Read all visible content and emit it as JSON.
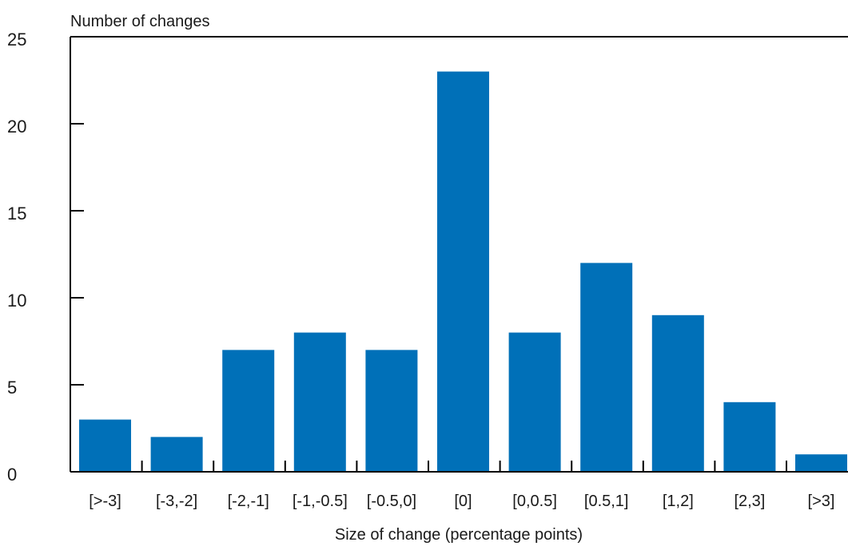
{
  "chart_data": {
    "type": "bar",
    "title": "",
    "ylabel": "Number of changes",
    "xlabel": "Size of change (percentage points)",
    "categories": [
      "[>-3]",
      "[-3,-2]",
      "[-2,-1]",
      "[-1,-0.5]",
      "[-0.5,0]",
      "[0]",
      "[0,0.5]",
      "[0.5,1]",
      "[1,2]",
      "[2,3]",
      "[>3]"
    ],
    "values": [
      3,
      2,
      7,
      8,
      7,
      23,
      8,
      12,
      9,
      4,
      1
    ],
    "ylim": [
      0,
      25
    ],
    "yticks": [
      0,
      5,
      10,
      15,
      20,
      25
    ],
    "bar_color": "#0070b8",
    "grid": false,
    "legend": "none"
  }
}
